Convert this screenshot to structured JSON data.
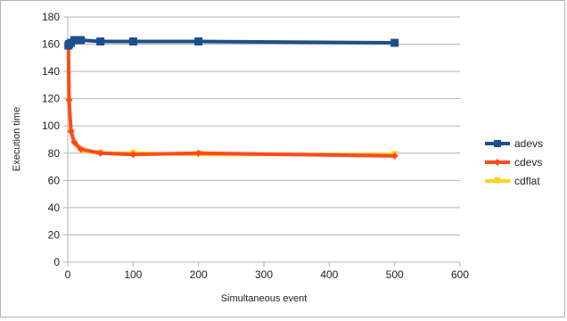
{
  "chart_data": {
    "type": "line",
    "title": "",
    "xlabel": "Simultaneous event",
    "ylabel": "Execution time",
    "xlim": [
      0,
      600
    ],
    "ylim": [
      0,
      180
    ],
    "x_ticks": [
      0,
      100,
      200,
      300,
      400,
      500,
      600
    ],
    "y_ticks": [
      0,
      20,
      40,
      60,
      80,
      100,
      120,
      140,
      160,
      180
    ],
    "grid": "horizontal",
    "legend_position": "right",
    "series": [
      {
        "name": "adevs",
        "color": "#1f4e8c",
        "marker": "square",
        "points": [
          {
            "x": 1,
            "y": 159
          },
          {
            "x": 2,
            "y": 160
          },
          {
            "x": 5,
            "y": 161
          },
          {
            "x": 10,
            "y": 163
          },
          {
            "x": 20,
            "y": 163
          },
          {
            "x": 50,
            "y": 162
          },
          {
            "x": 100,
            "y": 162
          },
          {
            "x": 200,
            "y": 162
          },
          {
            "x": 500,
            "y": 161
          }
        ]
      },
      {
        "name": "cdevs",
        "color": "#ff4a1c",
        "marker": "diamond",
        "points": [
          {
            "x": 1,
            "y": 160
          },
          {
            "x": 2,
            "y": 119
          },
          {
            "x": 5,
            "y": 96
          },
          {
            "x": 10,
            "y": 88
          },
          {
            "x": 20,
            "y": 83
          },
          {
            "x": 50,
            "y": 80
          },
          {
            "x": 100,
            "y": 79
          },
          {
            "x": 200,
            "y": 80
          },
          {
            "x": 500,
            "y": 78
          }
        ]
      },
      {
        "name": "cdflat",
        "color": "#ffd320",
        "marker": "triangle",
        "points": [
          {
            "x": 1,
            "y": 160
          },
          {
            "x": 2,
            "y": 118
          },
          {
            "x": 5,
            "y": 95
          },
          {
            "x": 10,
            "y": 87
          },
          {
            "x": 20,
            "y": 82
          },
          {
            "x": 50,
            "y": 80
          },
          {
            "x": 100,
            "y": 80
          },
          {
            "x": 200,
            "y": 79
          },
          {
            "x": 500,
            "y": 79
          }
        ]
      }
    ]
  }
}
